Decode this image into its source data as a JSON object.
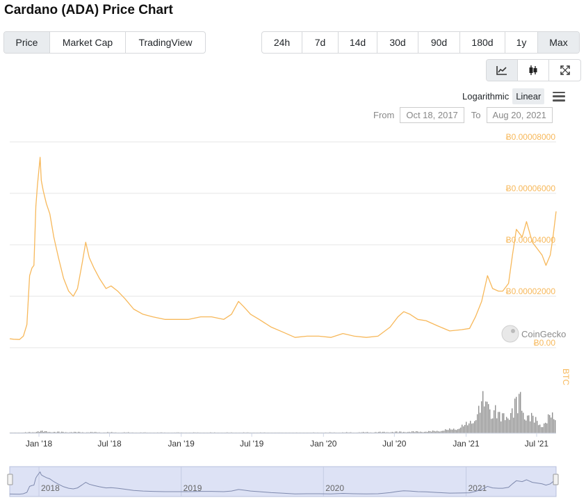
{
  "title": "Cardano (ADA) Price Chart",
  "metric_tabs": [
    {
      "label": "Price",
      "active": true
    },
    {
      "label": "Market Cap",
      "active": false
    },
    {
      "label": "TradingView",
      "active": false
    }
  ],
  "range_tabs": [
    {
      "label": "24h",
      "active": false
    },
    {
      "label": "7d",
      "active": false
    },
    {
      "label": "14d",
      "active": false
    },
    {
      "label": "30d",
      "active": false
    },
    {
      "label": "90d",
      "active": false
    },
    {
      "label": "180d",
      "active": false
    },
    {
      "label": "1y",
      "active": false
    },
    {
      "label": "Max",
      "active": true
    }
  ],
  "view_buttons": [
    {
      "icon": "line-chart-icon",
      "active": true
    },
    {
      "icon": "candlestick-icon",
      "active": false
    },
    {
      "icon": "fullscreen-icon",
      "active": false
    }
  ],
  "scale": {
    "logarithmic": "Logarithmic",
    "linear": "Linear",
    "active": "linear"
  },
  "date_range": {
    "from_label": "From",
    "from": "Oct 18, 2017",
    "to_label": "To",
    "to": "Aug 20, 2021"
  },
  "watermark": "CoinGecko",
  "colors": {
    "price_line": "#f7b85a",
    "volume": "#8f8f8f",
    "navigator_fill": "#dde2f5"
  },
  "chart_data": {
    "type": "line",
    "y_axis_title": "BTC",
    "yticks": [
      "Ƀ0.00",
      "Ƀ0.00002000",
      "Ƀ0.00004000",
      "Ƀ0.00006000",
      "Ƀ0.00008000"
    ],
    "ylim": [
      0,
      8e-05
    ],
    "xlim": [
      "2017-10-18",
      "2021-08-20"
    ],
    "xticks": [
      {
        "label": "Jan '18",
        "date": "2018-01-01"
      },
      {
        "label": "Jul '18",
        "date": "2018-07-01"
      },
      {
        "label": "Jan '19",
        "date": "2019-01-01"
      },
      {
        "label": "Jul '19",
        "date": "2019-07-01"
      },
      {
        "label": "Jan '20",
        "date": "2020-01-01"
      },
      {
        "label": "Jul '20",
        "date": "2020-07-01"
      },
      {
        "label": "Jan '21",
        "date": "2021-01-01"
      },
      {
        "label": "Jul '21",
        "date": "2021-07-01"
      }
    ],
    "navigator_ticks": [
      {
        "label": "2018",
        "date": "2018-01-01"
      },
      {
        "label": "2019",
        "date": "2019-01-01"
      },
      {
        "label": "2020",
        "date": "2020-01-01"
      },
      {
        "label": "2021",
        "date": "2021-01-01"
      }
    ],
    "price": [
      [
        "2017-10-18",
        3.5e-06
      ],
      [
        "2017-10-28",
        3.3e-06
      ],
      [
        "2017-11-12",
        3.2e-06
      ],
      [
        "2017-11-22",
        4.5e-06
      ],
      [
        "2017-12-01",
        9e-06
      ],
      [
        "2017-12-08",
        2.8e-05
      ],
      [
        "2017-12-14",
        3.1e-05
      ],
      [
        "2017-12-19",
        3.2e-05
      ],
      [
        "2017-12-24",
        5.5e-05
      ],
      [
        "2017-12-28",
        6.3e-05
      ],
      [
        "2018-01-04",
        7.4e-05
      ],
      [
        "2018-01-07",
        6.5e-05
      ],
      [
        "2018-01-12",
        6.1e-05
      ],
      [
        "2018-01-20",
        5.6e-05
      ],
      [
        "2018-01-29",
        5.2e-05
      ],
      [
        "2018-02-08",
        4.3e-05
      ],
      [
        "2018-02-20",
        3.5e-05
      ],
      [
        "2018-03-05",
        2.7e-05
      ],
      [
        "2018-03-18",
        2.2e-05
      ],
      [
        "2018-03-30",
        2e-05
      ],
      [
        "2018-04-10",
        2.3e-05
      ],
      [
        "2018-04-22",
        3.3e-05
      ],
      [
        "2018-05-01",
        4.1e-05
      ],
      [
        "2018-05-10",
        3.5e-05
      ],
      [
        "2018-05-22",
        3.1e-05
      ],
      [
        "2018-06-05",
        2.7e-05
      ],
      [
        "2018-06-22",
        2.3e-05
      ],
      [
        "2018-07-05",
        2.4e-05
      ],
      [
        "2018-07-22",
        2.2e-05
      ],
      [
        "2018-08-10",
        1.9e-05
      ],
      [
        "2018-09-01",
        1.5e-05
      ],
      [
        "2018-09-25",
        1.3e-05
      ],
      [
        "2018-10-20",
        1.2e-05
      ],
      [
        "2018-11-20",
        1.1e-05
      ],
      [
        "2018-12-20",
        1.1e-05
      ],
      [
        "2019-01-20",
        1.1e-05
      ],
      [
        "2019-02-20",
        1.2e-05
      ],
      [
        "2019-03-20",
        1.2e-05
      ],
      [
        "2019-04-20",
        1.1e-05
      ],
      [
        "2019-05-10",
        1.3e-05
      ],
      [
        "2019-05-28",
        1.8e-05
      ],
      [
        "2019-06-10",
        1.6e-05
      ],
      [
        "2019-06-28",
        1.3e-05
      ],
      [
        "2019-07-20",
        1.1e-05
      ],
      [
        "2019-08-20",
        8e-06
      ],
      [
        "2019-09-20",
        6e-06
      ],
      [
        "2019-10-20",
        4e-06
      ],
      [
        "2019-11-20",
        4.5e-06
      ],
      [
        "2019-12-20",
        4.5e-06
      ],
      [
        "2020-01-20",
        4e-06
      ],
      [
        "2020-02-20",
        5.5e-06
      ],
      [
        "2020-03-20",
        4.5e-06
      ],
      [
        "2020-04-20",
        4e-06
      ],
      [
        "2020-05-20",
        4.5e-06
      ],
      [
        "2020-06-20",
        8e-06
      ],
      [
        "2020-07-10",
        1.2e-05
      ],
      [
        "2020-07-25",
        1.4e-05
      ],
      [
        "2020-08-10",
        1.3e-05
      ],
      [
        "2020-08-30",
        1.1e-05
      ],
      [
        "2020-09-20",
        1.05e-05
      ],
      [
        "2020-10-20",
        8.5e-06
      ],
      [
        "2020-11-20",
        6.5e-06
      ],
      [
        "2020-12-20",
        7e-06
      ],
      [
        "2021-01-10",
        7.5e-06
      ],
      [
        "2021-01-25",
        1.2e-05
      ],
      [
        "2021-02-10",
        1.8e-05
      ],
      [
        "2021-02-25",
        2.8e-05
      ],
      [
        "2021-03-10",
        2.3e-05
      ],
      [
        "2021-03-25",
        2.2e-05
      ],
      [
        "2021-04-05",
        2.2e-05
      ],
      [
        "2021-04-20",
        2.5e-05
      ],
      [
        "2021-04-30",
        3.6e-05
      ],
      [
        "2021-05-10",
        4.6e-05
      ],
      [
        "2021-05-25",
        4.3e-05
      ],
      [
        "2021-06-05",
        4.9e-05
      ],
      [
        "2021-06-20",
        4.1e-05
      ],
      [
        "2021-07-05",
        3.8e-05
      ],
      [
        "2021-07-15",
        3.6e-05
      ],
      [
        "2021-07-25",
        3.2e-05
      ],
      [
        "2021-08-05",
        3.6e-05
      ],
      [
        "2021-08-12",
        4.3e-05
      ],
      [
        "2021-08-20",
        5.3e-05
      ]
    ],
    "volume": [
      [
        "2017-10-18",
        0.01
      ],
      [
        "2017-11-15",
        0.012
      ],
      [
        "2017-12-10",
        0.025
      ],
      [
        "2018-01-05",
        0.045
      ],
      [
        "2018-02-05",
        0.03
      ],
      [
        "2018-04-01",
        0.025
      ],
      [
        "2018-07-01",
        0.02
      ],
      [
        "2018-10-01",
        0.015
      ],
      [
        "2019-01-01",
        0.015
      ],
      [
        "2019-04-01",
        0.015
      ],
      [
        "2019-07-01",
        0.015
      ],
      [
        "2019-10-01",
        0.012
      ],
      [
        "2020-01-01",
        0.015
      ],
      [
        "2020-04-01",
        0.02
      ],
      [
        "2020-07-01",
        0.03
      ],
      [
        "2020-10-01",
        0.04
      ],
      [
        "2020-11-20",
        0.08
      ],
      [
        "2020-12-10",
        0.12
      ],
      [
        "2021-01-05",
        0.2
      ],
      [
        "2021-01-25",
        0.4
      ],
      [
        "2021-02-05",
        0.55
      ],
      [
        "2021-02-15",
        0.75
      ],
      [
        "2021-02-22",
        0.6
      ],
      [
        "2021-02-27",
        1.0
      ],
      [
        "2021-03-05",
        0.45
      ],
      [
        "2021-03-15",
        0.55
      ],
      [
        "2021-03-25",
        0.35
      ],
      [
        "2021-04-05",
        0.4
      ],
      [
        "2021-04-15",
        0.5
      ],
      [
        "2021-04-25",
        0.45
      ],
      [
        "2021-05-05",
        0.6
      ],
      [
        "2021-05-15",
        0.7
      ],
      [
        "2021-05-20",
        0.9
      ],
      [
        "2021-05-28",
        0.5
      ],
      [
        "2021-06-05",
        0.4
      ],
      [
        "2021-06-15",
        0.35
      ],
      [
        "2021-06-25",
        0.3
      ],
      [
        "2021-07-05",
        0.25
      ],
      [
        "2021-07-15",
        0.2
      ],
      [
        "2021-07-25",
        0.25
      ],
      [
        "2021-08-05",
        0.4
      ],
      [
        "2021-08-15",
        0.3
      ],
      [
        "2021-08-20",
        0.55
      ]
    ]
  }
}
